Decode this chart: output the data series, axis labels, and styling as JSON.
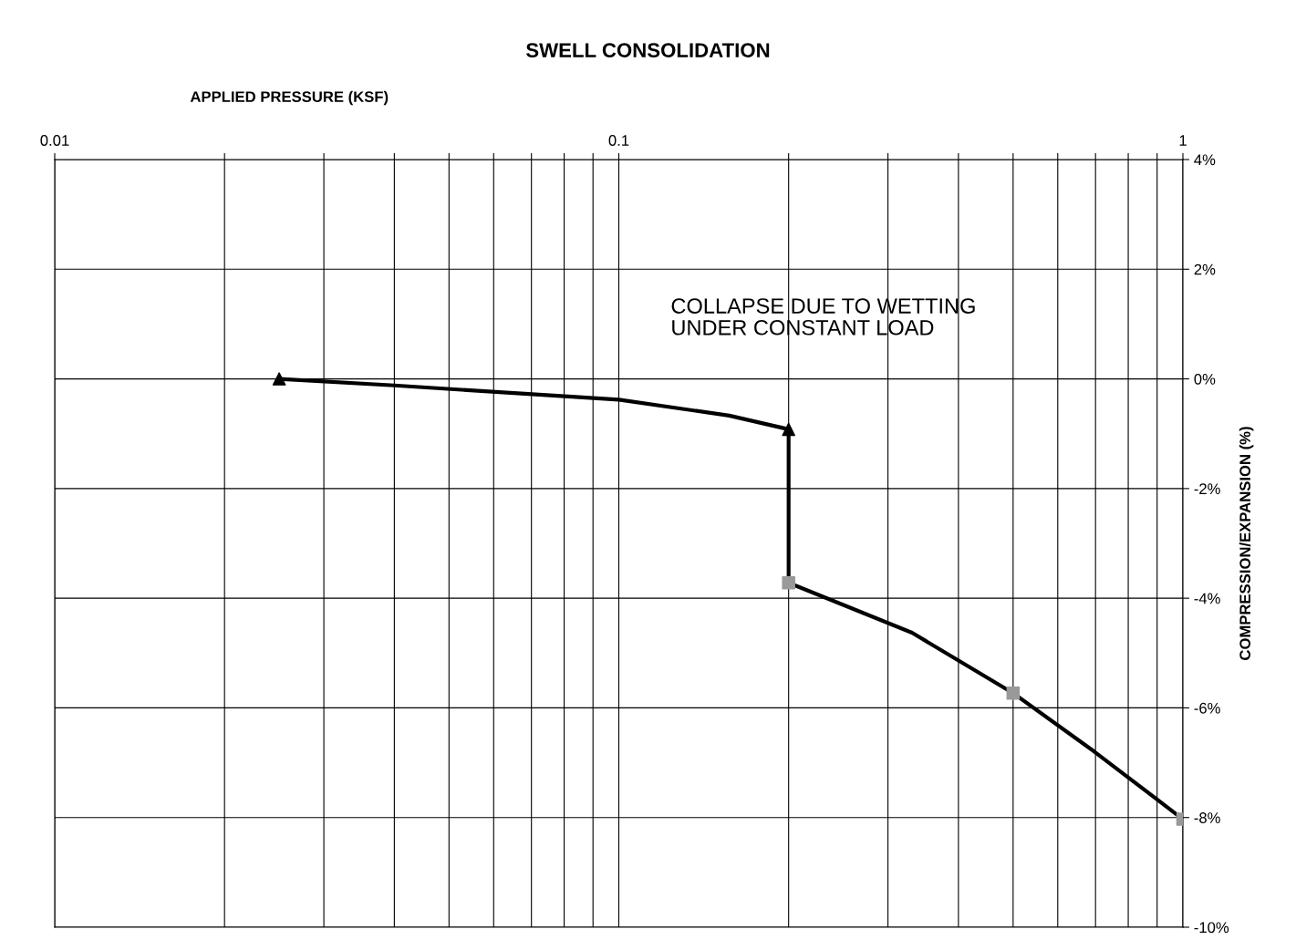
{
  "chart_data": {
    "type": "line",
    "title": "SWELL CONSOLIDATION",
    "xlabel": "APPLIED PRESSURE (KSF)",
    "ylabel": "COMPRESSION/EXPANSION (%)",
    "log": "x",
    "grid": true,
    "legend": false,
    "xlim": [
      0.01,
      1
    ],
    "xticks": [
      0.01,
      {
        "value": 0.02,
        "label": null
      },
      {
        "value": 0.03,
        "label": null
      },
      {
        "value": 0.04,
        "label": null
      },
      {
        "value": 0.05,
        "label": null
      },
      {
        "value": 0.06,
        "label": null
      },
      {
        "value": 0.07,
        "label": null
      },
      {
        "value": 0.08,
        "label": null
      },
      {
        "value": 0.09,
        "label": null
      },
      0.1,
      {
        "value": 0.2,
        "label": null
      },
      {
        "value": 0.3,
        "label": null
      },
      {
        "value": 0.4,
        "label": null
      },
      {
        "value": 0.5,
        "label": null
      },
      {
        "value": 0.6,
        "label": null
      },
      {
        "value": 0.7,
        "label": null
      },
      {
        "value": 0.8,
        "label": null
      },
      {
        "value": 0.9,
        "label": null
      },
      1
    ],
    "ylim": [
      -10,
      4
    ],
    "yticks": [
      {
        "value": 4,
        "label": "4%"
      },
      {
        "value": 2,
        "label": "2%"
      },
      {
        "value": 0,
        "label": "0%"
      },
      {
        "value": -2,
        "label": "-2%"
      },
      {
        "value": -4,
        "label": "-4%"
      },
      {
        "value": -6,
        "label": "-6%"
      },
      {
        "value": -8,
        "label": "-8%"
      },
      {
        "value": -10,
        "label": "-10%"
      }
    ],
    "annotations": [
      "COLLAPSE DUE TO WETTING\nUNDER CONSTANT LOAD"
    ],
    "series": [
      {
        "color": "#000000",
        "marker": "none",
        "line_style": "solid",
        "x": [
          0.025,
          0.04,
          0.1,
          0.157,
          0.2,
          0.2,
          0.331,
          0.5,
          0.697,
          1
        ],
        "values": [
          0,
          -0.12,
          -0.38,
          -0.67,
          -0.92,
          -3.72,
          -4.63,
          -5.73,
          -6.8,
          -8.03
        ]
      },
      {
        "type": "scatter",
        "color": "#000000",
        "marker": "triangle",
        "x": [
          0.025,
          0.2
        ],
        "values": [
          0,
          -0.92
        ]
      },
      {
        "type": "scatter",
        "color": "#999999",
        "marker": "square",
        "x": [
          0.2,
          0.5,
          1
        ],
        "values": [
          -3.72,
          -5.73,
          -8.03
        ]
      }
    ]
  }
}
